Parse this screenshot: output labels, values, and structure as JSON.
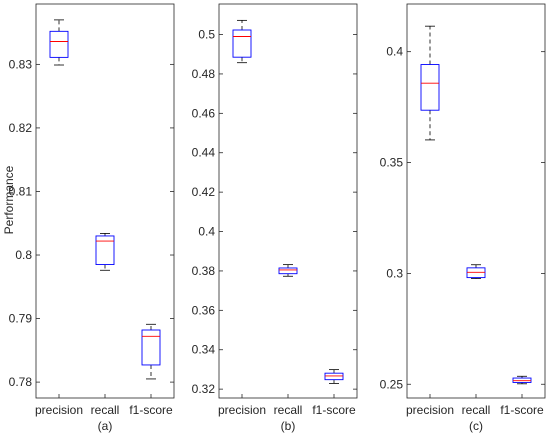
{
  "figure": {
    "ylabel": "Performance",
    "box_color": "#0000ff",
    "median_color": "#ff0000",
    "whisker_color": "#000000",
    "axes_color": "#262626"
  },
  "chart_data": [
    {
      "type": "box",
      "caption": "(a)",
      "categories": [
        "precision",
        "recall",
        "f1-score"
      ],
      "boxes": [
        {
          "whisker_low": 0.8299,
          "q1": 0.8311,
          "median": 0.8336,
          "q3": 0.8352,
          "whisker_high": 0.837
        },
        {
          "whisker_low": 0.7976,
          "q1": 0.7985,
          "median": 0.8022,
          "q3": 0.803,
          "whisker_high": 0.8034
        },
        {
          "whisker_low": 0.7805,
          "q1": 0.7827,
          "median": 0.7872,
          "q3": 0.7882,
          "whisker_high": 0.7891
        }
      ],
      "ylim": [
        0.7775,
        0.8395
      ],
      "yticks": [
        0.78,
        0.79,
        0.8,
        0.81,
        0.82,
        0.83
      ],
      "ytick_labels": [
        "0.78",
        "0.79",
        "0.8",
        "0.81",
        "0.82",
        "0.83"
      ]
    },
    {
      "type": "box",
      "caption": "(b)",
      "categories": [
        "precision",
        "recall",
        "f1-score"
      ],
      "boxes": [
        {
          "whisker_low": 0.4857,
          "q1": 0.4885,
          "median": 0.499,
          "q3": 0.5023,
          "whisker_high": 0.5072
        },
        {
          "whisker_low": 0.3773,
          "q1": 0.3786,
          "median": 0.3805,
          "q3": 0.3815,
          "whisker_high": 0.3832
        },
        {
          "whisker_low": 0.3229,
          "q1": 0.3248,
          "median": 0.3267,
          "q3": 0.3281,
          "whisker_high": 0.3299
        }
      ],
      "ylim": [
        0.3155,
        0.5155
      ],
      "yticks": [
        0.32,
        0.34,
        0.36,
        0.38,
        0.4,
        0.42,
        0.44,
        0.46,
        0.48,
        0.5
      ],
      "ytick_labels": [
        "0.32",
        "0.34",
        "0.36",
        "0.38",
        "0.4",
        "0.42",
        "0.44",
        "0.46",
        "0.48",
        "0.5"
      ]
    },
    {
      "type": "box",
      "caption": "(c)",
      "categories": [
        "precision",
        "recall",
        "f1-score"
      ],
      "boxes": [
        {
          "whisker_low": 0.3602,
          "q1": 0.3736,
          "median": 0.3858,
          "q3": 0.3942,
          "whisker_high": 0.4115
        },
        {
          "whisker_low": 0.2977,
          "q1": 0.2981,
          "median": 0.3005,
          "q3": 0.3025,
          "whisker_high": 0.3039
        },
        {
          "whisker_low": 0.2502,
          "q1": 0.2508,
          "median": 0.2516,
          "q3": 0.2528,
          "whisker_high": 0.2536
        }
      ],
      "ylim": [
        0.2438,
        0.4215
      ],
      "yticks": [
        0.25,
        0.3,
        0.35,
        0.4
      ],
      "ytick_labels": [
        "0.25",
        "0.3",
        "0.35",
        "0.4"
      ]
    }
  ]
}
